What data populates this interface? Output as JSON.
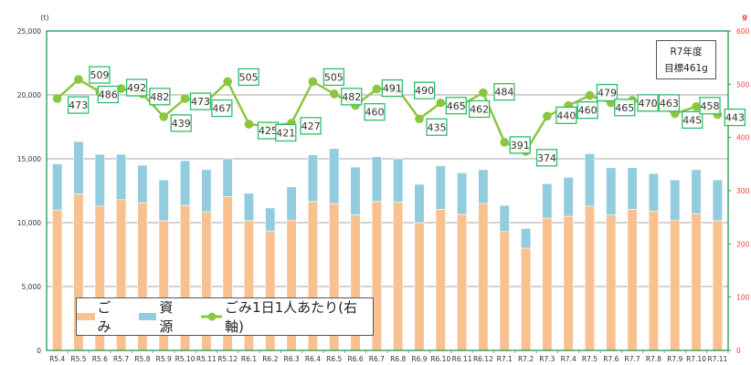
{
  "chart_data": {
    "type": "bar",
    "subtype": "stacked bar with line on secondary axis",
    "title": "",
    "categories": [
      "R5.4",
      "R5.5",
      "R5.6",
      "R5.7",
      "R5.8",
      "R5.9",
      "R5.10",
      "R5.11",
      "R5.12",
      "R6.1",
      "R6.2",
      "R6.3",
      "R6.4",
      "R6.5",
      "R6.6",
      "R6.7",
      "R6.8",
      "R6.9",
      "R6.10",
      "R6.11",
      "R6.12",
      "R7.1",
      "R7.2",
      "R7.3",
      "R7.4",
      "R7.5",
      "R7.6",
      "R7.7",
      "R7.8",
      "R7.9",
      "R7.10",
      "R7.11"
    ],
    "series": [
      {
        "name": "ごみ",
        "axis": "left",
        "kind": "bar-stack",
        "color": "#f9c190",
        "values": [
          11000,
          12250,
          11300,
          11800,
          11550,
          10150,
          11350,
          10850,
          12050,
          10150,
          9350,
          10200,
          11650,
          11500,
          10600,
          11650,
          11600,
          10000,
          11050,
          10650,
          11500,
          9300,
          8000,
          10350,
          10500,
          11300,
          10600,
          11050,
          10900,
          10200,
          10700,
          10150
        ]
      },
      {
        "name": "資源",
        "axis": "left",
        "kind": "bar-stack",
        "color": "#92cddf",
        "values": [
          3600,
          4100,
          4050,
          3550,
          2950,
          3200,
          3500,
          3300,
          2950,
          2150,
          1800,
          2600,
          3650,
          4300,
          3750,
          3500,
          3400,
          3000,
          3400,
          3250,
          2650,
          2050,
          1550,
          2700,
          3050,
          4100,
          3700,
          3250,
          2950,
          3150,
          3450,
          3200
        ]
      },
      {
        "name": "ごみ1日1人あたり(右軸)",
        "axis": "right",
        "kind": "line",
        "color": "#8cc63f",
        "values": [
          473,
          509,
          486,
          492,
          482,
          439,
          473,
          467,
          505,
          425,
          421,
          427,
          505,
          482,
          460,
          491,
          490,
          435,
          465,
          462,
          484,
          391,
          374,
          440,
          460,
          479,
          465,
          470,
          463,
          445,
          458,
          443
        ]
      }
    ],
    "left_axis": {
      "unit": "(t)",
      "min": 0,
      "max": 25000,
      "ticks": [
        "0",
        "5,000",
        "10,000",
        "15,000",
        "20,000",
        "25,000"
      ]
    },
    "right_axis": {
      "unit": "g",
      "min": 0,
      "max": 600,
      "ticks": [
        "0",
        "100",
        "200",
        "300",
        "400",
        "500",
        "600"
      ],
      "color": "#ff3b3b"
    },
    "xlabel": "",
    "ylabel": "(t)",
    "ylim": [
      0,
      25000
    ],
    "y2lim": [
      0,
      600
    ],
    "grid": true,
    "legend_position": "bottom-left inside plot",
    "annotations": [
      {
        "text_line1": "R7年度",
        "text_line2": "目標461g",
        "position": "top-right"
      }
    ]
  },
  "legend": {
    "items": [
      {
        "label": "ごみ",
        "color": "#f9c190"
      },
      {
        "label": "資源",
        "color": "#92cddf"
      },
      {
        "label": "ごみ1日1人あたり(右軸)",
        "color": "#8cc63f"
      }
    ]
  },
  "annotation": {
    "line1": "R7年度",
    "line2": "目標461g"
  },
  "colors": {
    "frame": "#1e9a4a",
    "grid": "#a6a6a6",
    "label_box": "#2ebd6b",
    "right_axis": "#ff3b3b"
  }
}
